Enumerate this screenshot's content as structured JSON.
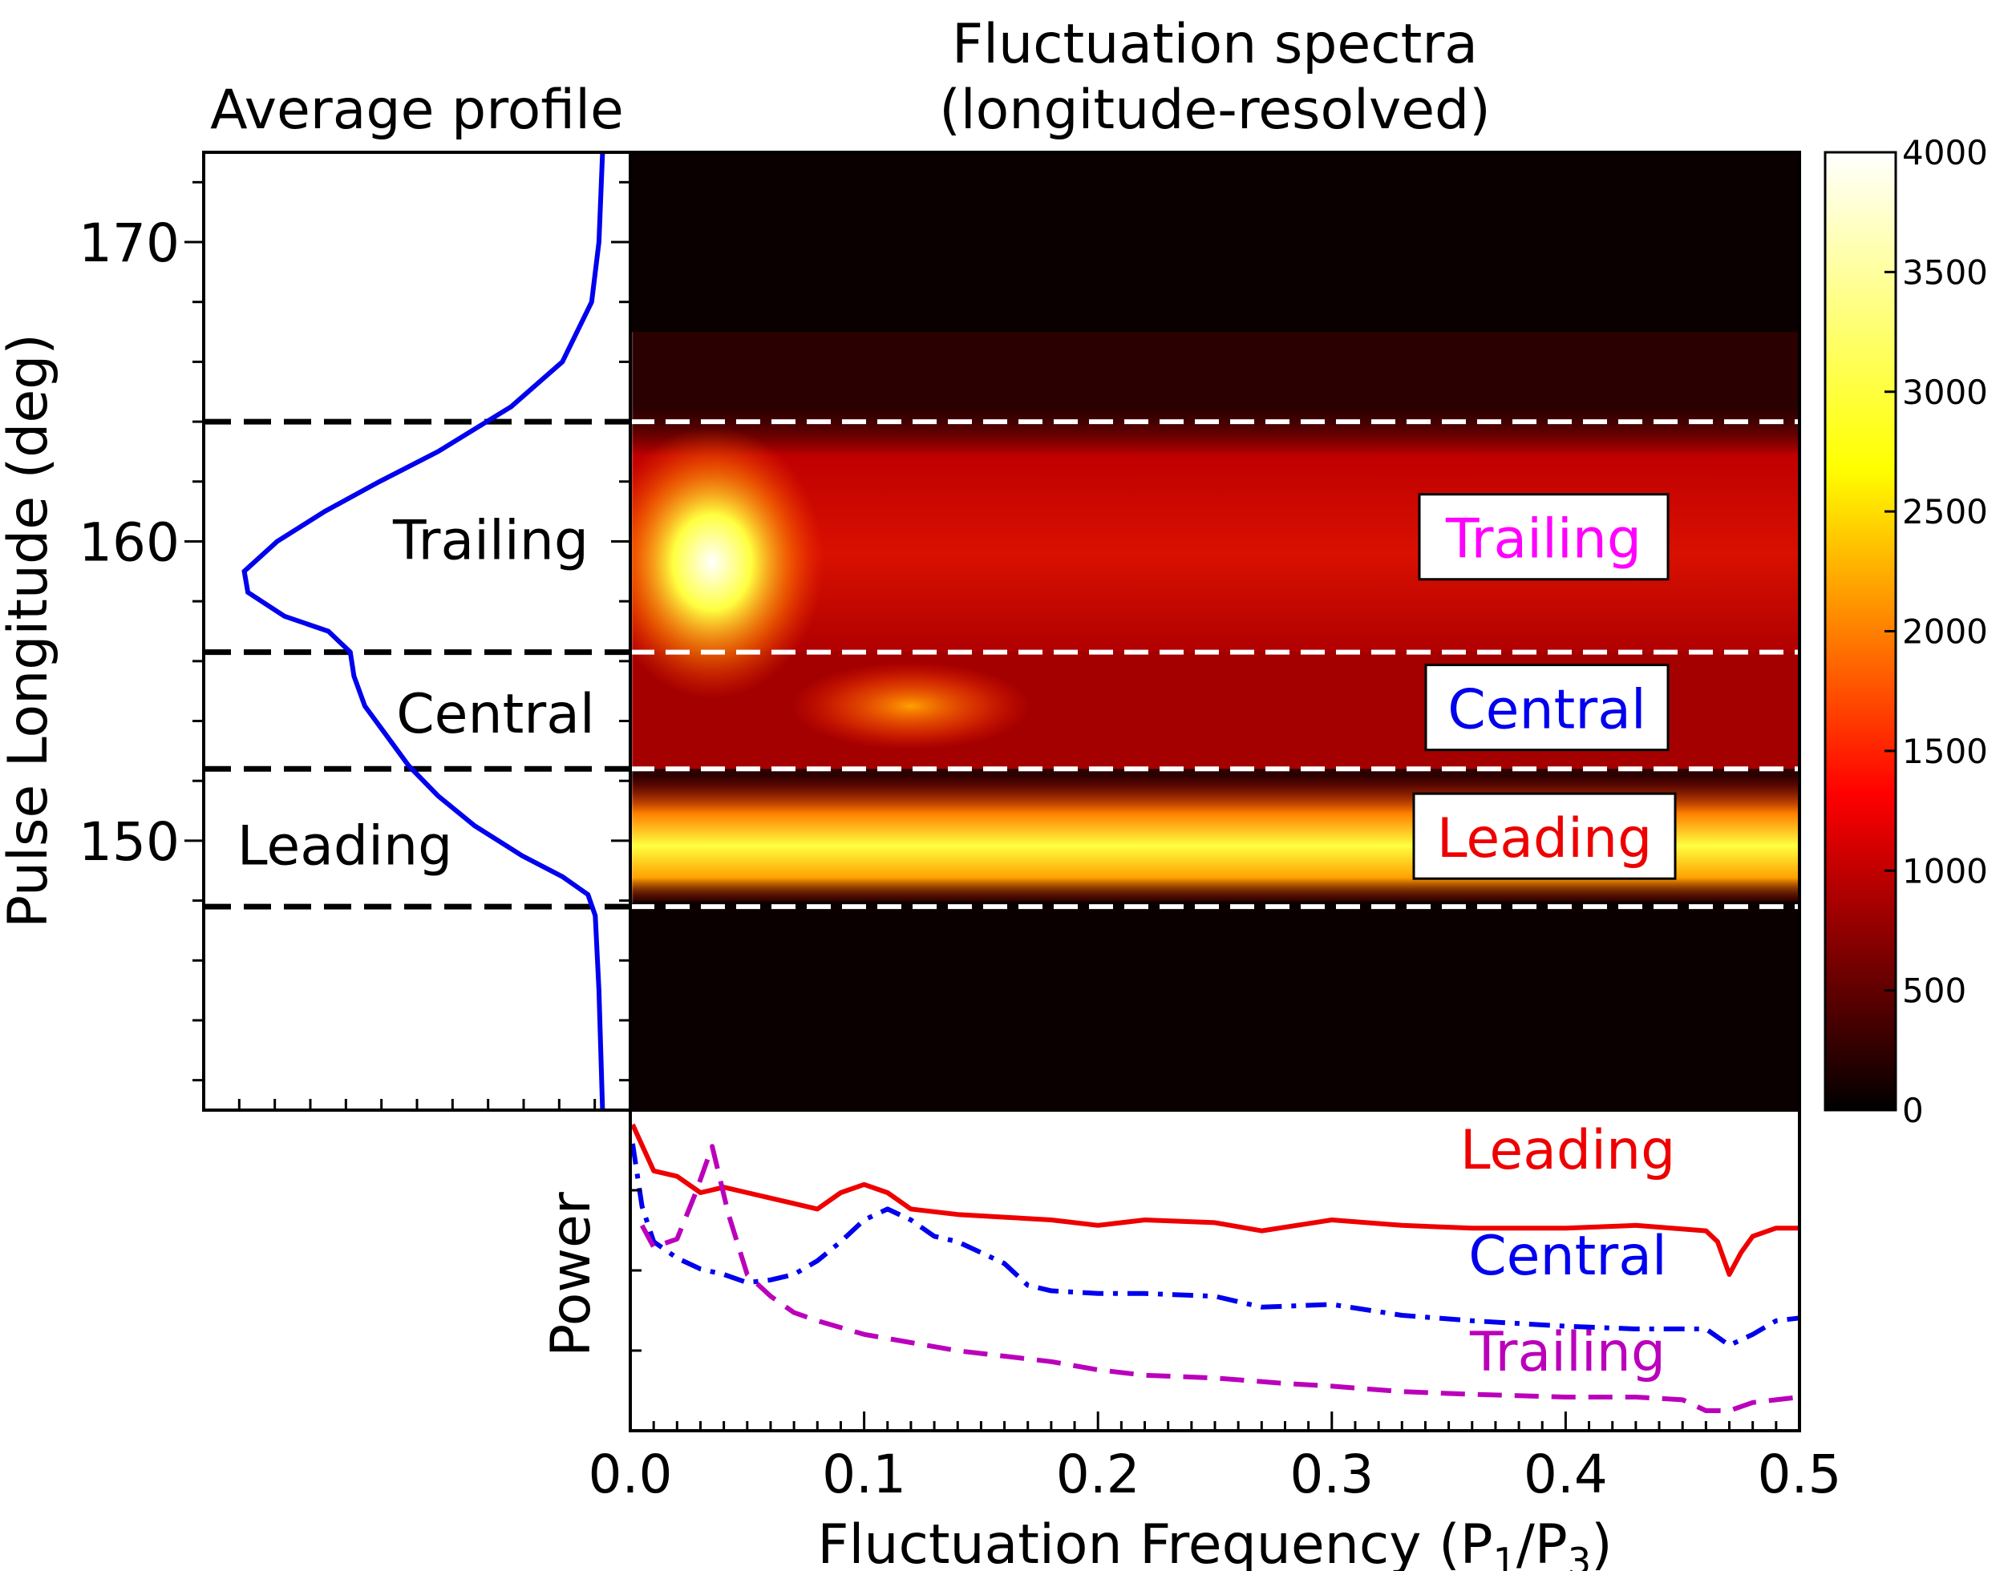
{
  "chart_data": [
    {
      "type": "line",
      "panel": "Average profile",
      "title": "Average profile",
      "ylabel": "Pulse Longitude (deg)",
      "ylim": [
        141,
        173
      ],
      "yticks": [
        150,
        160,
        170
      ],
      "curve": {
        "color": "#0000ee",
        "points": [
          {
            "lon": 173,
            "intensity": 0.01
          },
          {
            "lon": 170,
            "intensity": 0.02
          },
          {
            "lon": 168,
            "intensity": 0.04
          },
          {
            "lon": 166,
            "intensity": 0.12
          },
          {
            "lon": 164.5,
            "intensity": 0.26
          },
          {
            "lon": 163,
            "intensity": 0.46
          },
          {
            "lon": 162,
            "intensity": 0.62
          },
          {
            "lon": 161,
            "intensity": 0.77
          },
          {
            "lon": 160,
            "intensity": 0.9
          },
          {
            "lon": 159,
            "intensity": 0.99
          },
          {
            "lon": 158.3,
            "intensity": 0.98
          },
          {
            "lon": 157.5,
            "intensity": 0.88
          },
          {
            "lon": 157,
            "intensity": 0.76
          },
          {
            "lon": 156.3,
            "intensity": 0.7
          },
          {
            "lon": 155.5,
            "intensity": 0.69
          },
          {
            "lon": 154.5,
            "intensity": 0.66
          },
          {
            "lon": 153.5,
            "intensity": 0.6
          },
          {
            "lon": 152.5,
            "intensity": 0.54
          },
          {
            "lon": 151.5,
            "intensity": 0.46
          },
          {
            "lon": 150.5,
            "intensity": 0.36
          },
          {
            "lon": 149.5,
            "intensity": 0.23
          },
          {
            "lon": 148.8,
            "intensity": 0.12
          },
          {
            "lon": 148.2,
            "intensity": 0.05
          },
          {
            "lon": 147.5,
            "intensity": 0.03
          },
          {
            "lon": 145,
            "intensity": 0.02
          },
          {
            "lon": 141,
            "intensity": 0.01
          }
        ]
      },
      "boundaries_deg": [
        164,
        156.3,
        152.4,
        147.8
      ],
      "region_labels": [
        {
          "text": "Trailing",
          "lon": 160
        },
        {
          "text": "Central",
          "lon": 154.2
        },
        {
          "text": "Leading",
          "lon": 149.8
        }
      ]
    },
    {
      "type": "heatmap",
      "panel": "Fluctuation spectra",
      "title_lines": [
        "Fluctuation spectra",
        "(longitude-resolved)"
      ],
      "xlim": [
        0.0,
        0.5
      ],
      "ylim": [
        141,
        173
      ],
      "boundaries_deg": [
        164,
        156.3,
        152.4,
        147.8
      ],
      "colorbar": {
        "min": 0,
        "max": 4000,
        "ticks": [
          0,
          500,
          1000,
          1500,
          2000,
          2500,
          3000,
          3500,
          4000
        ],
        "colormap": "hot"
      },
      "features": [
        {
          "f": 0.035,
          "lon": 159.3,
          "level": 4000
        },
        {
          "f": 0.12,
          "lon": 154.5,
          "level": 2000
        },
        {
          "lon": 149.8,
          "level": 3200
        }
      ],
      "region_labels": [
        {
          "text": "Trailing",
          "color": "#ff00ff",
          "lon": 160.1
        },
        {
          "text": "Central",
          "color": "#0000ee",
          "lon": 154.4
        },
        {
          "text": "Leading",
          "color": "#ee0000",
          "lon": 150.1
        }
      ]
    },
    {
      "type": "line",
      "panel": "Power",
      "ylabel": "Power",
      "xlabel_main": "Fluctuation Frequency (P",
      "xlabel_sub1": "1",
      "xlabel_mid": "/P",
      "xlabel_sub2": "3",
      "xlabel_end": ")",
      "xlim": [
        0.0,
        0.5
      ],
      "xticks": [
        "0.0",
        "0.1",
        "0.2",
        "0.3",
        "0.4",
        "0.5"
      ],
      "series": [
        {
          "name": "Leading",
          "color": "#ee0000",
          "style": "solid",
          "points": [
            [
              0.001,
              1.05
            ],
            [
              0.01,
              0.88
            ],
            [
              0.02,
              0.86
            ],
            [
              0.03,
              0.8
            ],
            [
              0.04,
              0.82
            ],
            [
              0.05,
              0.8
            ],
            [
              0.06,
              0.78
            ],
            [
              0.07,
              0.76
            ],
            [
              0.08,
              0.74
            ],
            [
              0.09,
              0.8
            ],
            [
              0.1,
              0.83
            ],
            [
              0.11,
              0.8
            ],
            [
              0.12,
              0.74
            ],
            [
              0.14,
              0.72
            ],
            [
              0.16,
              0.71
            ],
            [
              0.18,
              0.7
            ],
            [
              0.2,
              0.68
            ],
            [
              0.22,
              0.7
            ],
            [
              0.25,
              0.69
            ],
            [
              0.27,
              0.66
            ],
            [
              0.3,
              0.7
            ],
            [
              0.33,
              0.68
            ],
            [
              0.36,
              0.67
            ],
            [
              0.4,
              0.67
            ],
            [
              0.43,
              0.68
            ],
            [
              0.46,
              0.66
            ],
            [
              0.465,
              0.62
            ],
            [
              0.47,
              0.5
            ],
            [
              0.475,
              0.58
            ],
            [
              0.48,
              0.64
            ],
            [
              0.49,
              0.67
            ],
            [
              0.5,
              0.67
            ]
          ]
        },
        {
          "name": "Central",
          "color": "#0000ee",
          "style": "dashdot",
          "points": [
            [
              0.001,
              0.98
            ],
            [
              0.005,
              0.75
            ],
            [
              0.01,
              0.62
            ],
            [
              0.02,
              0.56
            ],
            [
              0.03,
              0.52
            ],
            [
              0.04,
              0.5
            ],
            [
              0.05,
              0.47
            ],
            [
              0.06,
              0.48
            ],
            [
              0.07,
              0.5
            ],
            [
              0.08,
              0.55
            ],
            [
              0.09,
              0.62
            ],
            [
              0.1,
              0.7
            ],
            [
              0.11,
              0.74
            ],
            [
              0.12,
              0.7
            ],
            [
              0.13,
              0.64
            ],
            [
              0.14,
              0.62
            ],
            [
              0.15,
              0.58
            ],
            [
              0.16,
              0.54
            ],
            [
              0.17,
              0.46
            ],
            [
              0.18,
              0.44
            ],
            [
              0.2,
              0.43
            ],
            [
              0.22,
              0.43
            ],
            [
              0.25,
              0.42
            ],
            [
              0.27,
              0.38
            ],
            [
              0.3,
              0.39
            ],
            [
              0.33,
              0.35
            ],
            [
              0.36,
              0.33
            ],
            [
              0.4,
              0.31
            ],
            [
              0.43,
              0.3
            ],
            [
              0.46,
              0.3
            ],
            [
              0.47,
              0.24
            ],
            [
              0.48,
              0.28
            ],
            [
              0.49,
              0.33
            ],
            [
              0.5,
              0.34
            ]
          ]
        },
        {
          "name": "Trailing",
          "color": "#bb00bb",
          "style": "dashed",
          "points": [
            [
              0.005,
              0.68
            ],
            [
              0.01,
              0.6
            ],
            [
              0.02,
              0.63
            ],
            [
              0.028,
              0.8
            ],
            [
              0.035,
              0.97
            ],
            [
              0.042,
              0.72
            ],
            [
              0.05,
              0.5
            ],
            [
              0.06,
              0.42
            ],
            [
              0.07,
              0.36
            ],
            [
              0.08,
              0.33
            ],
            [
              0.1,
              0.28
            ],
            [
              0.12,
              0.25
            ],
            [
              0.14,
              0.22
            ],
            [
              0.16,
              0.2
            ],
            [
              0.18,
              0.18
            ],
            [
              0.2,
              0.15
            ],
            [
              0.22,
              0.13
            ],
            [
              0.25,
              0.12
            ],
            [
              0.28,
              0.1
            ],
            [
              0.3,
              0.09
            ],
            [
              0.33,
              0.07
            ],
            [
              0.36,
              0.06
            ],
            [
              0.4,
              0.05
            ],
            [
              0.43,
              0.05
            ],
            [
              0.45,
              0.04
            ],
            [
              0.46,
              0.0
            ],
            [
              0.47,
              0.0
            ],
            [
              0.48,
              0.03
            ],
            [
              0.49,
              0.04
            ],
            [
              0.5,
              0.05
            ]
          ]
        }
      ]
    }
  ]
}
